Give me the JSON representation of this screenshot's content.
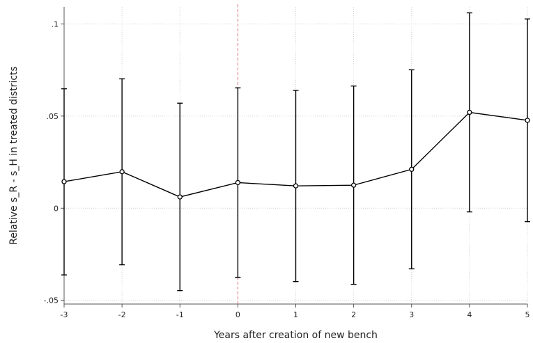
{
  "chart_data": {
    "type": "line",
    "xlabel": "Years after creation of new bench",
    "ylabel": "Relative s_R - s_H in treated districts",
    "x": [
      -3,
      -2,
      -1,
      0,
      1,
      2,
      3,
      4,
      5
    ],
    "y": [
      0.0144,
      0.0198,
      0.0061,
      0.0139,
      0.0121,
      0.0125,
      0.0211,
      0.052,
      0.0477
    ],
    "ci_low": [
      -0.0362,
      -0.0307,
      -0.0447,
      -0.0375,
      -0.0398,
      -0.0413,
      -0.0329,
      -0.002,
      -0.0073
    ],
    "ci_high": [
      0.0648,
      0.0702,
      0.057,
      0.0653,
      0.064,
      0.0663,
      0.0751,
      0.106,
      0.1027
    ],
    "xticks": [
      "-3",
      "-2",
      "-1",
      "0",
      "1",
      "2",
      "3",
      "4",
      "5"
    ],
    "yticks": [
      ".1",
      ".05",
      "0",
      "-.05"
    ],
    "ytick_values": [
      0.1,
      0.05,
      0,
      -0.05
    ],
    "xlim": [
      -3,
      5
    ],
    "ylim": [
      -0.052,
      0.1092
    ],
    "grid": true,
    "reference_line_x": 0,
    "colors": {
      "line": "#000000",
      "reference": "#e0707a",
      "grid": "#d4d4d4"
    }
  }
}
